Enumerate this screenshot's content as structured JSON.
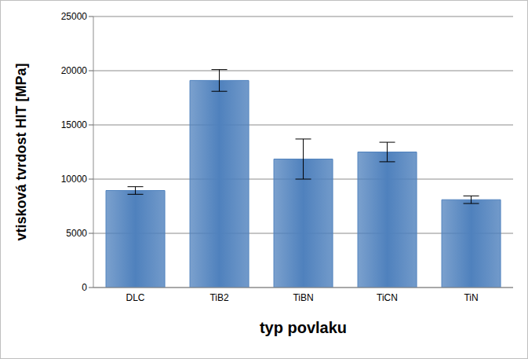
{
  "chart_data": {
    "type": "bar",
    "categories": [
      "DLC",
      "TiB2",
      "TiBN",
      "TiCN",
      "TiN"
    ],
    "values": [
      8950,
      19100,
      11850,
      12500,
      8100
    ],
    "errors": [
      350,
      1000,
      1850,
      900,
      350
    ],
    "color": "#4f81bd",
    "x_label": "typ povlaku",
    "y_label": "vtisková tvrdost HIT [MPa]",
    "ylim": [
      0,
      25000
    ],
    "yticks": [
      0,
      5000,
      10000,
      15000,
      20000,
      25000
    ],
    "grid": true
  }
}
